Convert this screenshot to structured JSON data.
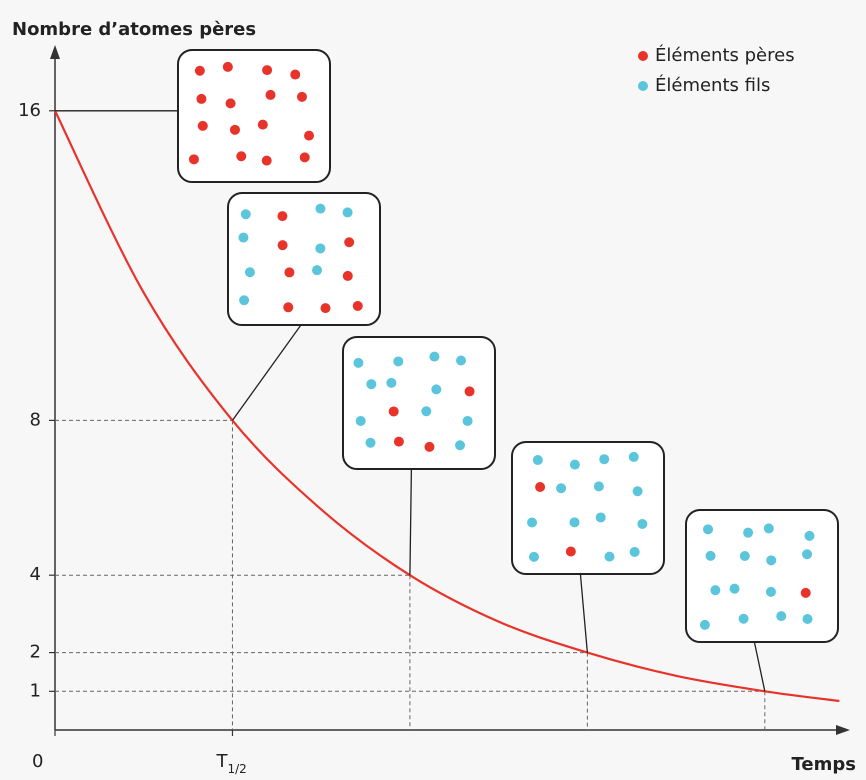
{
  "chart_data": {
    "type": "line",
    "title": "Nombre d’atomes pères",
    "x_label": "Temps",
    "x": [
      0,
      0.5,
      1,
      1.5,
      2,
      2.5,
      3,
      3.5,
      4,
      4.42
    ],
    "values": [
      16,
      11.3,
      8,
      5.7,
      4,
      2.8,
      2,
      1.4,
      1,
      0.75
    ],
    "color": "#e8332a",
    "xlim": [
      0,
      4.48
    ],
    "ylim": [
      0,
      17.7
    ],
    "xticks": [
      0,
      {
        "value": 1,
        "label": "T1/2"
      }
    ],
    "yticks": [
      1,
      2,
      4,
      8,
      16
    ],
    "guides": [
      1,
      2,
      3,
      4
    ],
    "dots": [
      {
        "name": "Éléments pères",
        "color": "#e8332a"
      },
      {
        "name": "Éléments fils",
        "color": "#5bc5dc"
      }
    ],
    "insets": [
      {
        "x": 0,
        "parents": 16,
        "daughters": 0
      },
      {
        "x": 1,
        "parents": 8,
        "daughters": 8
      },
      {
        "x": 2,
        "parents": 4,
        "daughters": 12
      },
      {
        "x": 3,
        "parents": 2,
        "daughters": 14
      },
      {
        "x": 4,
        "parents": 1,
        "daughters": 15
      }
    ],
    "legend_position": "upper right"
  }
}
